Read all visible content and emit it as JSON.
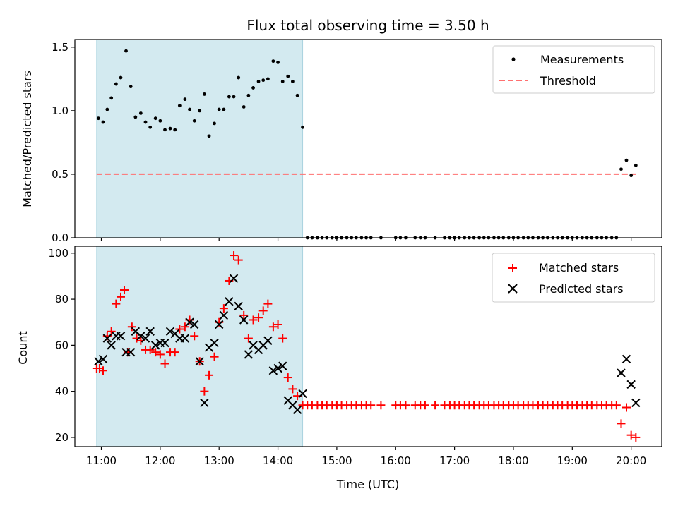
{
  "chart_data": [
    {
      "type": "scatter",
      "title": "Flux total observing time = 3.50 h",
      "ylabel": "Matched/Predicted stars",
      "ylim": [
        0,
        1.56
      ],
      "yticks": [
        0.0,
        0.5,
        1.0,
        1.5
      ],
      "ytick_labels": [
        "0.0",
        "0.5",
        "1.0",
        "1.5"
      ],
      "xlim": [
        10.55,
        20.52
      ],
      "shaded_x": [
        10.92,
        14.42
      ],
      "shade_color": "#d3eaf0",
      "legend_position": "upper right",
      "series": [
        {
          "name": "Measurements",
          "marker": "dot",
          "color": "#000000",
          "x": [
            10.95,
            11.03,
            11.1,
            11.17,
            11.25,
            11.33,
            11.42,
            11.5,
            11.58,
            11.67,
            11.75,
            11.83,
            11.92,
            12.0,
            12.08,
            12.17,
            12.25,
            12.33,
            12.42,
            12.5,
            12.58,
            12.67,
            12.75,
            12.83,
            12.92,
            13.0,
            13.08,
            13.17,
            13.25,
            13.33,
            13.42,
            13.5,
            13.58,
            13.67,
            13.75,
            13.83,
            13.92,
            14.0,
            14.08,
            14.17,
            14.25,
            14.33,
            14.42,
            14.5,
            14.58,
            14.67,
            14.75,
            14.83,
            14.92,
            15.0,
            15.08,
            15.17,
            15.25,
            15.33,
            15.42,
            15.5,
            15.58,
            15.75,
            16.0,
            16.08,
            16.17,
            16.33,
            16.42,
            16.5,
            16.67,
            16.83,
            16.92,
            17.0,
            17.08,
            17.17,
            17.25,
            17.33,
            17.42,
            17.5,
            17.58,
            17.67,
            17.75,
            17.83,
            17.92,
            18.0,
            18.08,
            18.17,
            18.25,
            18.33,
            18.42,
            18.5,
            18.58,
            18.67,
            18.75,
            18.83,
            18.92,
            19.0,
            19.08,
            19.17,
            19.25,
            19.33,
            19.42,
            19.5,
            19.58,
            19.67,
            19.75,
            19.83,
            19.92,
            20.0,
            20.08
          ],
          "y": [
            0.94,
            0.91,
            1.01,
            1.1,
            1.21,
            1.26,
            1.47,
            1.19,
            0.95,
            0.98,
            0.91,
            0.87,
            0.94,
            0.92,
            0.85,
            0.86,
            0.85,
            1.04,
            1.09,
            1.01,
            0.92,
            1.0,
            1.13,
            0.8,
            0.9,
            1.01,
            1.01,
            1.11,
            1.11,
            1.26,
            1.03,
            1.12,
            1.18,
            1.23,
            1.24,
            1.25,
            1.39,
            1.38,
            1.23,
            1.27,
            1.23,
            1.12,
            0.87,
            0.0,
            0.0,
            0.0,
            0.0,
            0.0,
            0.0,
            0.0,
            0.0,
            0.0,
            0.0,
            0.0,
            0.0,
            0.0,
            0.0,
            0.0,
            0.0,
            0.0,
            0.0,
            0.0,
            0.0,
            0.0,
            0.0,
            0.0,
            0.0,
            0.0,
            0.0,
            0.0,
            0.0,
            0.0,
            0.0,
            0.0,
            0.0,
            0.0,
            0.0,
            0.0,
            0.0,
            0.0,
            0.0,
            0.0,
            0.0,
            0.0,
            0.0,
            0.0,
            0.0,
            0.0,
            0.0,
            0.0,
            0.0,
            0.0,
            0.0,
            0.0,
            0.0,
            0.0,
            0.0,
            0.0,
            0.0,
            0.0,
            0.0,
            0.54,
            0.61,
            0.49,
            0.57
          ]
        },
        {
          "name": "Threshold",
          "type": "line",
          "style": "dashed",
          "color": "#ff7070",
          "x": [
            10.92,
            20.08
          ],
          "y": [
            0.5,
            0.5
          ]
        }
      ]
    },
    {
      "type": "scatter",
      "xlabel": "Time (UTC)",
      "ylabel": "Count",
      "ylim": [
        16,
        103
      ],
      "yticks": [
        20,
        40,
        60,
        80,
        100
      ],
      "ytick_labels": [
        "20",
        "40",
        "60",
        "80",
        "100"
      ],
      "xlim": [
        10.55,
        20.52
      ],
      "xticks": [
        11,
        12,
        13,
        14,
        15,
        16,
        17,
        18,
        19,
        20
      ],
      "xtick_labels": [
        "11:00",
        "12:00",
        "13:00",
        "14:00",
        "15:00",
        "16:00",
        "17:00",
        "18:00",
        "19:00",
        "20:00"
      ],
      "shaded_x": [
        10.92,
        14.42
      ],
      "shade_color": "#d3eaf0",
      "legend_position": "upper right",
      "series": [
        {
          "name": "Matched stars",
          "marker": "plus",
          "color": "#ff0000",
          "x": [
            10.92,
            10.97,
            11.03,
            11.1,
            11.17,
            11.25,
            11.33,
            11.39,
            11.45,
            11.52,
            11.6,
            11.67,
            11.75,
            11.83,
            11.92,
            12.0,
            12.08,
            12.17,
            12.25,
            12.33,
            12.42,
            12.5,
            12.58,
            12.67,
            12.75,
            12.83,
            12.92,
            13.0,
            13.08,
            13.17,
            13.25,
            13.33,
            13.42,
            13.5,
            13.58,
            13.67,
            13.75,
            13.83,
            13.92,
            14.0,
            14.08,
            14.17,
            14.25,
            14.33,
            14.42,
            14.5,
            14.58,
            14.67,
            14.75,
            14.83,
            14.92,
            15.0,
            15.08,
            15.17,
            15.25,
            15.33,
            15.42,
            15.5,
            15.58,
            15.75,
            16.0,
            16.08,
            16.17,
            16.33,
            16.42,
            16.5,
            16.67,
            16.83,
            16.92,
            17.0,
            17.08,
            17.17,
            17.25,
            17.33,
            17.42,
            17.5,
            17.58,
            17.67,
            17.75,
            17.83,
            17.92,
            18.0,
            18.08,
            18.17,
            18.25,
            18.33,
            18.42,
            18.5,
            18.58,
            18.67,
            18.75,
            18.83,
            18.92,
            19.0,
            19.08,
            19.17,
            19.25,
            19.33,
            19.42,
            19.5,
            19.58,
            19.67,
            19.75,
            19.83,
            19.92,
            20.0,
            20.08
          ],
          "y": [
            50,
            50,
            49,
            64,
            66,
            78,
            81,
            84,
            57,
            68,
            63,
            62,
            58,
            58,
            57,
            56,
            52,
            57,
            57,
            67,
            68,
            71,
            64,
            53,
            40,
            47,
            55,
            70,
            76,
            88,
            99,
            97,
            73,
            63,
            71,
            72,
            75,
            78,
            68,
            69,
            63,
            46,
            41,
            38,
            34,
            34,
            34,
            34,
            34,
            34,
            34,
            34,
            34,
            34,
            34,
            34,
            34,
            34,
            34,
            34,
            34,
            34,
            34,
            34,
            34,
            34,
            34,
            34,
            34,
            34,
            34,
            34,
            34,
            34,
            34,
            34,
            34,
            34,
            34,
            34,
            34,
            34,
            34,
            34,
            34,
            34,
            34,
            34,
            34,
            34,
            34,
            34,
            34,
            34,
            34,
            34,
            34,
            34,
            34,
            34,
            34,
            34,
            34,
            26,
            33,
            21,
            20
          ]
        },
        {
          "name": "Predicted stars",
          "marker": "x",
          "color": "#000000",
          "x": [
            10.95,
            11.03,
            11.1,
            11.17,
            11.25,
            11.33,
            11.42,
            11.5,
            11.58,
            11.67,
            11.75,
            11.83,
            11.92,
            12.0,
            12.08,
            12.17,
            12.25,
            12.33,
            12.42,
            12.5,
            12.58,
            12.67,
            12.75,
            12.83,
            12.92,
            13.0,
            13.08,
            13.17,
            13.25,
            13.33,
            13.42,
            13.5,
            13.58,
            13.67,
            13.75,
            13.83,
            13.92,
            14.0,
            14.08,
            14.17,
            14.25,
            14.33,
            14.42,
            19.83,
            19.92,
            20.0,
            20.08
          ],
          "y": [
            53,
            54,
            63,
            60,
            64,
            64,
            57,
            57,
            66,
            64,
            63,
            66,
            60,
            61,
            61,
            66,
            65,
            63,
            63,
            70,
            69,
            53,
            35,
            59,
            61,
            69,
            73,
            79,
            89,
            77,
            71,
            56,
            60,
            58,
            60,
            62,
            49,
            50,
            51,
            36,
            34,
            32,
            39,
            48,
            54,
            43,
            35
          ]
        }
      ]
    }
  ]
}
